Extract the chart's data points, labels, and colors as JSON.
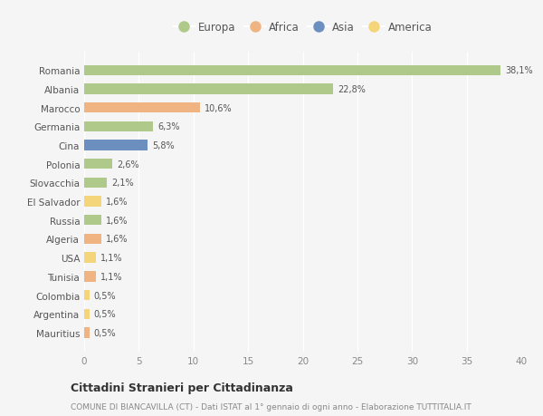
{
  "countries": [
    "Romania",
    "Albania",
    "Marocco",
    "Germania",
    "Cina",
    "Polonia",
    "Slovacchia",
    "El Salvador",
    "Russia",
    "Algeria",
    "USA",
    "Tunisia",
    "Colombia",
    "Argentina",
    "Mauritius"
  ],
  "values": [
    38.1,
    22.8,
    10.6,
    6.3,
    5.8,
    2.6,
    2.1,
    1.6,
    1.6,
    1.6,
    1.1,
    1.1,
    0.5,
    0.5,
    0.5
  ],
  "labels": [
    "38,1%",
    "22,8%",
    "10,6%",
    "6,3%",
    "5,8%",
    "2,6%",
    "2,1%",
    "1,6%",
    "1,6%",
    "1,6%",
    "1,1%",
    "1,1%",
    "0,5%",
    "0,5%",
    "0,5%"
  ],
  "continents": [
    "Europa",
    "Europa",
    "Africa",
    "Europa",
    "Asia",
    "Europa",
    "Europa",
    "America",
    "Europa",
    "Africa",
    "America",
    "Africa",
    "America",
    "America",
    "Africa"
  ],
  "colors": {
    "Europa": "#aec98a",
    "Africa": "#f0b482",
    "Asia": "#6b8fbf",
    "America": "#f5d57a"
  },
  "legend_order": [
    "Europa",
    "Africa",
    "Asia",
    "America"
  ],
  "xlim": [
    0,
    40
  ],
  "xticks": [
    0,
    5,
    10,
    15,
    20,
    25,
    30,
    35,
    40
  ],
  "title": "Cittadini Stranieri per Cittadinanza",
  "subtitle": "COMUNE DI BIANCAVILLA (CT) - Dati ISTAT al 1° gennaio di ogni anno - Elaborazione TUTTITALIA.IT",
  "background_color": "#f5f5f5",
  "grid_color": "#ffffff",
  "bar_height": 0.55
}
